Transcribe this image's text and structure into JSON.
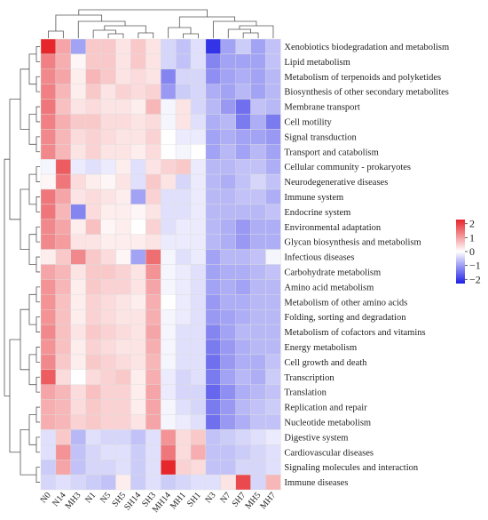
{
  "chart_data": {
    "type": "heatmap",
    "title": "",
    "xlabel": "",
    "ylabel": "",
    "columns": [
      "N0",
      "N14",
      "MH3",
      "N1",
      "N5",
      "SH5",
      "SH14",
      "SH3",
      "MH14",
      "MH1",
      "SH1",
      "N3",
      "N7",
      "SH7",
      "MH5",
      "MH7"
    ],
    "rows": [
      "Xenobiotics biodegradation and metabolism",
      "Lipid metabolism",
      "Metabolism of terpenoids and polyketides",
      "Biosynthesis of other secondary metabolites",
      "Membrane transport",
      "Cell motility",
      "Signal transduction",
      "Transport and catabolism",
      "Cellular community - prokaryotes",
      "Neurodegenerative diseases",
      "Immune system",
      "Endocrine system",
      "Environmental adaptation",
      "Glycan biosynthesis and metabolism",
      "Infectious diseases",
      "Carbohydrate metabolism",
      "Amino acid metabolism",
      "Metabolism of other amino acids",
      "Folding, sorting and degradation",
      "Metabolism of cofactors and vitamins",
      "Energy metabolism",
      "Cell growth and death",
      "Transcription",
      "Translation",
      "Replication and repair",
      "Nucleotide metabolism",
      "Digestive system",
      "Cardiovascular diseases",
      "Signaling molecules and interaction",
      "Immune diseases"
    ],
    "values": [
      [
        2.4,
        1.0,
        -0.9,
        0.6,
        0.6,
        0.3,
        0.6,
        0.3,
        -0.4,
        -0.6,
        -0.3,
        -2.0,
        -0.9,
        -0.5,
        -0.9,
        -0.6
      ],
      [
        1.4,
        0.9,
        0.1,
        0.6,
        0.6,
        0.3,
        0.6,
        0.3,
        -0.4,
        -0.6,
        -0.3,
        -1.2,
        -0.9,
        -0.9,
        -0.9,
        -0.6
      ],
      [
        1.3,
        1.0,
        0.2,
        0.8,
        0.6,
        0.3,
        0.4,
        0.3,
        -1.2,
        -0.4,
        -0.4,
        -1.1,
        -0.9,
        -0.8,
        -0.9,
        -0.7
      ],
      [
        1.4,
        0.8,
        0.2,
        0.6,
        0.3,
        0.5,
        0.4,
        0.5,
        -1.0,
        -0.5,
        -0.4,
        -0.8,
        -0.9,
        -0.7,
        -0.9,
        -0.7
      ],
      [
        1.5,
        0.7,
        0.3,
        0.4,
        0.3,
        0.3,
        0.2,
        0.8,
        -0.1,
        0.3,
        -0.4,
        -0.7,
        -1.0,
        -1.4,
        -0.6,
        -0.7
      ],
      [
        1.4,
        0.9,
        0.6,
        0.6,
        0.4,
        0.4,
        0.3,
        0.4,
        -0.1,
        0.3,
        -0.3,
        -0.8,
        -0.7,
        -1.3,
        -0.8,
        -1.3
      ],
      [
        1.3,
        0.8,
        0.4,
        0.5,
        0.4,
        0.3,
        0.3,
        0.5,
        0.0,
        -0.2,
        -0.2,
        -0.9,
        -0.8,
        -0.9,
        -0.9,
        -1.0
      ],
      [
        1.3,
        0.8,
        0.3,
        0.5,
        0.3,
        0.3,
        0.2,
        0.4,
        0.0,
        -0.1,
        0.0,
        -0.9,
        -0.7,
        -0.9,
        -0.7,
        -0.9
      ],
      [
        -0.1,
        1.8,
        -0.2,
        -0.3,
        -0.2,
        0.2,
        -0.3,
        0.3,
        0.5,
        0.6,
        -0.2,
        -0.7,
        -0.7,
        -0.6,
        -0.6,
        -0.8
      ],
      [
        0.1,
        1.5,
        0.4,
        0.2,
        0.1,
        0.3,
        -0.3,
        0.6,
        0.3,
        -0.4,
        -0.2,
        -0.7,
        -0.8,
        -0.6,
        -0.4,
        -0.6
      ],
      [
        1.5,
        1.0,
        0.3,
        0.4,
        0.3,
        0.2,
        -0.9,
        0.5,
        -0.3,
        -0.3,
        -0.2,
        -0.7,
        -0.7,
        -0.6,
        -0.6,
        -0.8
      ],
      [
        1.5,
        0.8,
        -1.2,
        0.4,
        0.2,
        0.2,
        0.1,
        0.3,
        -0.3,
        -0.3,
        -0.2,
        -0.7,
        -0.7,
        -0.7,
        -0.7,
        -0.6
      ],
      [
        1.3,
        1.0,
        0.2,
        0.7,
        0.1,
        0.2,
        0.0,
        0.5,
        -0.3,
        -0.2,
        -0.2,
        -0.7,
        -0.8,
        -1.0,
        -0.8,
        -0.8
      ],
      [
        1.3,
        1.1,
        0.3,
        0.3,
        0.2,
        0.2,
        0.2,
        0.3,
        -0.2,
        -0.2,
        -0.2,
        -0.7,
        -0.8,
        -1.0,
        -0.8,
        -0.8
      ],
      [
        0.2,
        0.6,
        1.3,
        0.6,
        0.4,
        0.1,
        -0.9,
        1.6,
        -0.1,
        -0.3,
        -0.2,
        -0.9,
        -0.7,
        -0.7,
        -0.6,
        -0.1
      ],
      [
        1.0,
        0.8,
        0.3,
        0.6,
        0.6,
        0.5,
        0.3,
        1.2,
        -0.1,
        -0.2,
        -0.3,
        -0.9,
        -0.8,
        -0.8,
        -0.7,
        -0.6
      ],
      [
        1.2,
        0.8,
        0.2,
        0.6,
        0.5,
        0.5,
        0.3,
        1.0,
        -0.1,
        -0.2,
        -0.3,
        -0.9,
        -0.8,
        -0.9,
        -0.7,
        -0.7
      ],
      [
        1.2,
        0.7,
        0.2,
        0.5,
        0.4,
        0.3,
        0.2,
        0.9,
        0.0,
        -0.2,
        -0.3,
        -1.0,
        -0.8,
        -0.8,
        -0.7,
        -0.7
      ],
      [
        1.2,
        0.7,
        0.2,
        0.5,
        0.4,
        0.3,
        0.3,
        0.9,
        -0.1,
        -0.2,
        -0.3,
        -1.0,
        -0.9,
        -0.8,
        -0.7,
        -0.7
      ],
      [
        1.3,
        0.7,
        0.3,
        0.6,
        0.5,
        0.4,
        0.3,
        1.0,
        -0.1,
        -0.3,
        -0.3,
        -1.2,
        -0.9,
        -0.7,
        -0.7,
        -0.7
      ],
      [
        1.2,
        0.7,
        0.2,
        0.5,
        0.4,
        0.3,
        0.3,
        0.9,
        -0.1,
        -0.3,
        -0.3,
        -1.3,
        -1.0,
        -0.8,
        -0.7,
        -0.7
      ],
      [
        1.3,
        0.6,
        0.2,
        0.6,
        0.5,
        0.4,
        0.3,
        0.8,
        -0.1,
        -0.3,
        -0.3,
        -1.4,
        -1.0,
        -0.8,
        -0.8,
        -0.6
      ],
      [
        1.8,
        0.4,
        0.0,
        0.4,
        0.5,
        0.6,
        0.2,
        0.9,
        -0.2,
        -0.4,
        -0.3,
        -1.3,
        -0.9,
        -0.7,
        -0.8,
        -0.5
      ],
      [
        1.0,
        0.8,
        0.4,
        0.7,
        0.5,
        0.5,
        0.2,
        1.0,
        -0.2,
        -0.4,
        -0.4,
        -1.5,
        -1.1,
        -0.8,
        -0.7,
        -0.6
      ],
      [
        0.9,
        0.8,
        0.4,
        0.6,
        0.5,
        0.5,
        0.2,
        1.0,
        -0.1,
        -0.3,
        -0.4,
        -1.3,
        -1.0,
        -0.7,
        -0.6,
        -0.5
      ],
      [
        0.9,
        0.8,
        0.5,
        0.6,
        0.5,
        0.5,
        0.3,
        1.0,
        -0.1,
        -0.2,
        -0.3,
        -1.4,
        -1.0,
        -0.8,
        -0.6,
        -0.6
      ],
      [
        -0.3,
        0.6,
        -0.7,
        -0.3,
        -0.4,
        -0.4,
        -0.6,
        -0.3,
        1.2,
        0.4,
        0.6,
        -0.6,
        -0.5,
        -0.4,
        -0.3,
        -0.2
      ],
      [
        -0.3,
        1.2,
        -0.6,
        -0.4,
        -0.3,
        -0.3,
        -0.5,
        -0.3,
        1.5,
        0.4,
        0.9,
        -0.6,
        -0.6,
        -0.5,
        -0.4,
        -0.3
      ],
      [
        -0.5,
        1.0,
        -0.6,
        -0.4,
        -0.4,
        -0.3,
        -0.5,
        -0.3,
        2.8,
        0.5,
        0.4,
        -0.6,
        -0.6,
        -0.4,
        -0.4,
        -0.3
      ],
      [
        -0.4,
        -0.3,
        -0.4,
        -0.5,
        -0.6,
        0.2,
        -0.5,
        -0.3,
        -0.5,
        -0.4,
        -0.3,
        -0.3,
        0.3,
        2.0,
        -0.4,
        0.8
      ]
    ],
    "colormap": {
      "low": "#1f1fe6",
      "mid": "#ffffff",
      "high": "#e6262b"
    },
    "legend": {
      "ticks": [
        2,
        1,
        0,
        -1,
        -2
      ],
      "range": [
        -2.2,
        2.4
      ],
      "placement": "right"
    },
    "dendrogram": {
      "rows": true,
      "columns": true
    }
  }
}
